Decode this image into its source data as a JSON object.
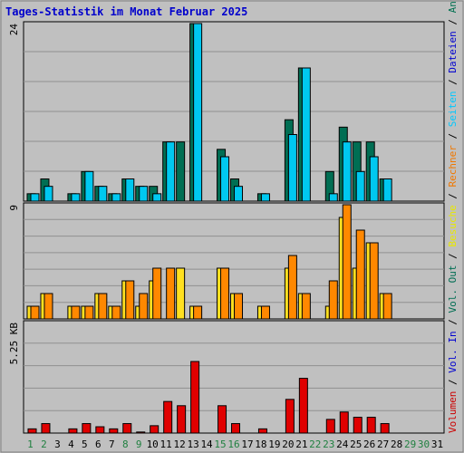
{
  "chart_data": {
    "title": "Tages-Statistik im Monat Februar 2025",
    "type": "bar",
    "days": [
      {
        "label": "1",
        "weekend": true
      },
      {
        "label": "2",
        "weekend": true
      },
      {
        "label": "3",
        "weekend": false
      },
      {
        "label": "4",
        "weekend": false
      },
      {
        "label": "5",
        "weekend": false
      },
      {
        "label": "6",
        "weekend": false
      },
      {
        "label": "7",
        "weekend": false
      },
      {
        "label": "8",
        "weekend": true
      },
      {
        "label": "9",
        "weekend": true
      },
      {
        "label": "10",
        "weekend": false
      },
      {
        "label": "11",
        "weekend": false
      },
      {
        "label": "12",
        "weekend": false
      },
      {
        "label": "13",
        "weekend": false
      },
      {
        "label": "14",
        "weekend": false
      },
      {
        "label": "15",
        "weekend": true
      },
      {
        "label": "16",
        "weekend": true
      },
      {
        "label": "17",
        "weekend": false
      },
      {
        "label": "18",
        "weekend": false
      },
      {
        "label": "19",
        "weekend": false
      },
      {
        "label": "20",
        "weekend": false
      },
      {
        "label": "21",
        "weekend": false
      },
      {
        "label": "22",
        "weekend": true
      },
      {
        "label": "23",
        "weekend": true
      },
      {
        "label": "24",
        "weekend": false
      },
      {
        "label": "25",
        "weekend": false
      },
      {
        "label": "26",
        "weekend": false
      },
      {
        "label": "27",
        "weekend": false
      },
      {
        "label": "28",
        "weekend": false
      },
      {
        "label": "29",
        "weekend": true
      },
      {
        "label": "30",
        "weekend": true
      },
      {
        "label": "31",
        "weekend": false
      }
    ],
    "panels": [
      {
        "id": "requests",
        "ymax": 24,
        "tick_label": "24",
        "gridlines": 6,
        "legend": [
          {
            "text": "Anfragen",
            "color": "#007050"
          },
          {
            "text": "Dateien",
            "color": "#0000d0"
          },
          {
            "text": "Seiten",
            "color": "#00c8ff"
          }
        ],
        "series": [
          {
            "color": "#006e53",
            "values": [
              1,
              3,
              0,
              1,
              4,
              2,
              1,
              3,
              2,
              2,
              8,
              8,
              24,
              0,
              7,
              3,
              0,
              1,
              0,
              11,
              18,
              0,
              4,
              10,
              8,
              8,
              3,
              0,
              0,
              0,
              0
            ]
          },
          {
            "color": "#00c8f0",
            "values": [
              1,
              2,
              0,
              1,
              4,
              2,
              1,
              3,
              2,
              1,
              8,
              0,
              24,
              0,
              6,
              2,
              0,
              1,
              0,
              9,
              18,
              0,
              1,
              8,
              4,
              6,
              3,
              0,
              0,
              0,
              0
            ]
          }
        ]
      },
      {
        "id": "visits",
        "ymax": 9,
        "tick_label": "9",
        "gridlines": 7,
        "legend": [
          {
            "text": "Rechner",
            "color": "#f07800"
          },
          {
            "text": "Besuche",
            "color": "#e8e800"
          }
        ],
        "series": [
          {
            "color": "#ffe020",
            "values": [
              1,
              2,
              0,
              1,
              1,
              2,
              1,
              3,
              1,
              3,
              0,
              4,
              1,
              0,
              4,
              2,
              0,
              1,
              0,
              4,
              2,
              0,
              1,
              8,
              4,
              6,
              2,
              0,
              0,
              0,
              0
            ]
          },
          {
            "color": "#ff8800",
            "values": [
              1,
              2,
              0,
              1,
              1,
              2,
              1,
              3,
              2,
              4,
              4,
              0,
              1,
              0,
              4,
              2,
              0,
              1,
              0,
              5,
              2,
              0,
              3,
              9,
              7,
              6,
              2,
              0,
              0,
              0,
              0
            ]
          }
        ]
      },
      {
        "id": "volume",
        "ymax": 5.25,
        "tick_label": "5.25 KB",
        "gridlines": 5,
        "legend": [
          {
            "text": "Vol. Out",
            "color": "#006e53"
          },
          {
            "text": "Vol. In",
            "color": "#0000d0"
          },
          {
            "text": "Volumen",
            "color": "#cc0000"
          }
        ],
        "series": [
          {
            "color": "#e00000",
            "values": [
              0.2,
              0.45,
              0,
              0.2,
              0.45,
              0.3,
              0.2,
              0.45,
              0.05,
              0.35,
              1.5,
              1.3,
              3.4,
              0,
              1.3,
              0.45,
              0,
              0.2,
              0,
              1.6,
              2.6,
              0,
              0.65,
              1.0,
              0.75,
              0.75,
              0.45,
              0,
              0,
              0,
              0
            ]
          }
        ]
      }
    ]
  }
}
